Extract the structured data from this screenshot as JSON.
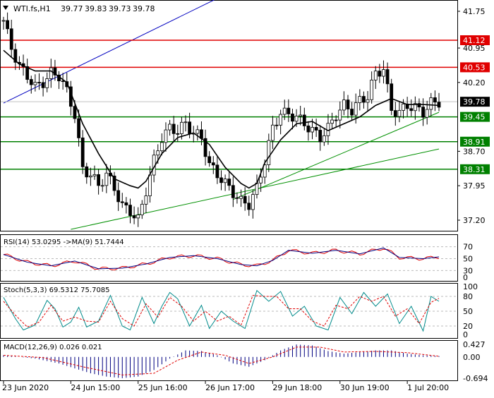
{
  "header": {
    "symbol": "WTI.fs,H1",
    "ohlc": [
      "39.77",
      "39.83",
      "39.73",
      "39.78"
    ]
  },
  "chart_data": [
    {
      "type": "candlestick",
      "title": "WTI.fs,H1",
      "ylim": [
        37.0,
        41.95
      ],
      "yticks": [
        "41.75",
        "40.95",
        "40.20",
        "38.70",
        "37.95",
        "37.20"
      ],
      "xticks": [
        "23 Jun 2020",
        "24 Jun 15:00",
        "25 Jun 16:00",
        "26 Jun 17:00",
        "29 Jun 18:00",
        "30 Jun 19:00",
        "1 Jul 20:00"
      ],
      "levels": [
        {
          "value": 41.12,
          "label": "41.12",
          "color": "#e00000"
        },
        {
          "value": 40.53,
          "label": "40.53",
          "color": "#e00000"
        },
        {
          "value": 39.45,
          "label": "39.45",
          "color": "#008000"
        },
        {
          "value": 38.91,
          "label": "38.91",
          "color": "#008000"
        },
        {
          "value": 38.31,
          "label": "38.31",
          "color": "#008000"
        }
      ],
      "last_price": {
        "value": 39.78,
        "label": "39.78"
      },
      "close_path": [
        [
          0,
          41.55
        ],
        [
          2,
          40.95
        ],
        [
          4,
          40.55
        ],
        [
          6,
          40.35
        ],
        [
          8,
          40.1
        ],
        [
          10,
          40.2
        ],
        [
          12,
          40.4
        ],
        [
          14,
          40.35
        ],
        [
          16,
          40.0
        ],
        [
          18,
          39.5
        ],
        [
          20,
          38.3
        ],
        [
          22,
          38.2
        ],
        [
          24,
          37.95
        ],
        [
          26,
          38.2
        ],
        [
          28,
          37.9
        ],
        [
          30,
          37.5
        ],
        [
          32,
          37.4
        ],
        [
          34,
          37.2
        ],
        [
          36,
          37.85
        ],
        [
          38,
          38.5
        ],
        [
          40,
          39.0
        ],
        [
          42,
          39.2
        ],
        [
          44,
          39.15
        ],
        [
          46,
          39.3
        ],
        [
          48,
          39.1
        ],
        [
          50,
          39.0
        ],
        [
          52,
          38.4
        ],
        [
          54,
          38.2
        ],
        [
          56,
          38.0
        ],
        [
          58,
          37.8
        ],
        [
          60,
          37.6
        ],
        [
          62,
          37.55
        ],
        [
          64,
          37.9
        ],
        [
          66,
          38.5
        ],
        [
          68,
          39.2
        ],
        [
          70,
          39.55
        ],
        [
          72,
          39.5
        ],
        [
          74,
          39.45
        ],
        [
          76,
          39.3
        ],
        [
          78,
          39.15
        ],
        [
          80,
          39.0
        ],
        [
          82,
          39.2
        ],
        [
          84,
          39.5
        ],
        [
          86,
          39.7
        ],
        [
          88,
          39.6
        ],
        [
          90,
          39.8
        ],
        [
          92,
          39.9
        ],
        [
          94,
          40.4
        ],
        [
          96,
          40.5
        ],
        [
          98,
          39.6
        ],
        [
          100,
          39.55
        ],
        [
          102,
          39.7
        ],
        [
          104,
          39.65
        ],
        [
          106,
          39.55
        ],
        [
          108,
          39.75
        ],
        [
          110,
          39.78
        ]
      ],
      "ma_path": [
        [
          0,
          40.9
        ],
        [
          4,
          40.6
        ],
        [
          8,
          40.45
        ],
        [
          12,
          40.45
        ],
        [
          16,
          40.2
        ],
        [
          20,
          39.3
        ],
        [
          24,
          38.65
        ],
        [
          28,
          38.1
        ],
        [
          32,
          37.95
        ],
        [
          34,
          37.9
        ],
        [
          36,
          38.05
        ],
        [
          40,
          38.65
        ],
        [
          44,
          39.0
        ],
        [
          48,
          39.1
        ],
        [
          52,
          38.85
        ],
        [
          56,
          38.35
        ],
        [
          60,
          38.0
        ],
        [
          62,
          37.9
        ],
        [
          64,
          38.0
        ],
        [
          66,
          38.45
        ],
        [
          70,
          38.95
        ],
        [
          74,
          39.3
        ],
        [
          78,
          39.35
        ],
        [
          82,
          39.15
        ],
        [
          86,
          39.3
        ],
        [
          90,
          39.45
        ],
        [
          94,
          39.7
        ],
        [
          98,
          39.85
        ],
        [
          102,
          39.72
        ],
        [
          106,
          39.72
        ],
        [
          110,
          39.7
        ]
      ]
    },
    {
      "type": "line",
      "title": "RSI(14) 53.0295 ->MA(9) 51.7444",
      "ylim": [
        15,
        85
      ],
      "yticks": [
        "70",
        "50",
        "30",
        "0"
      ],
      "rsi": [
        [
          0,
          57
        ],
        [
          6,
          44
        ],
        [
          12,
          38
        ],
        [
          18,
          46
        ],
        [
          24,
          33
        ],
        [
          30,
          34
        ],
        [
          36,
          41
        ],
        [
          42,
          52
        ],
        [
          48,
          55
        ],
        [
          54,
          50
        ],
        [
          60,
          40
        ],
        [
          64,
          38
        ],
        [
          68,
          47
        ],
        [
          72,
          64
        ],
        [
          78,
          59
        ],
        [
          84,
          64
        ],
        [
          90,
          58
        ],
        [
          96,
          68
        ],
        [
          100,
          52
        ],
        [
          106,
          50
        ],
        [
          110,
          53
        ]
      ]
    },
    {
      "type": "line",
      "title": "Stoch(5,3,3) 69.5312 75.7085",
      "ylim": [
        0,
        100
      ],
      "yticks": [
        "100",
        "80",
        "50",
        "20",
        "0"
      ],
      "k": [
        [
          0,
          78
        ],
        [
          3,
          35
        ],
        [
          5,
          12
        ],
        [
          8,
          22
        ],
        [
          11,
          72
        ],
        [
          13,
          55
        ],
        [
          15,
          18
        ],
        [
          17,
          28
        ],
        [
          19,
          58
        ],
        [
          21,
          18
        ],
        [
          24,
          30
        ],
        [
          27,
          82
        ],
        [
          30,
          20
        ],
        [
          32,
          12
        ],
        [
          35,
          78
        ],
        [
          38,
          25
        ],
        [
          40,
          60
        ],
        [
          42,
          88
        ],
        [
          44,
          75
        ],
        [
          47,
          20
        ],
        [
          50,
          62
        ],
        [
          52,
          15
        ],
        [
          55,
          50
        ],
        [
          58,
          30
        ],
        [
          61,
          15
        ],
        [
          64,
          92
        ],
        [
          67,
          70
        ],
        [
          70,
          90
        ],
        [
          73,
          40
        ],
        [
          76,
          60
        ],
        [
          79,
          20
        ],
        [
          82,
          12
        ],
        [
          85,
          78
        ],
        [
          88,
          45
        ],
        [
          91,
          88
        ],
        [
          94,
          60
        ],
        [
          97,
          85
        ],
        [
          100,
          25
        ],
        [
          103,
          60
        ],
        [
          106,
          10
        ],
        [
          108,
          80
        ],
        [
          110,
          70
        ]
      ],
      "d": [
        [
          0,
          70
        ],
        [
          3,
          42
        ],
        [
          6,
          18
        ],
        [
          9,
          28
        ],
        [
          12,
          62
        ],
        [
          15,
          30
        ],
        [
          18,
          38
        ],
        [
          21,
          30
        ],
        [
          24,
          28
        ],
        [
          27,
          70
        ],
        [
          30,
          35
        ],
        [
          33,
          20
        ],
        [
          36,
          65
        ],
        [
          39,
          38
        ],
        [
          42,
          78
        ],
        [
          45,
          60
        ],
        [
          48,
          30
        ],
        [
          51,
          50
        ],
        [
          54,
          30
        ],
        [
          57,
          40
        ],
        [
          60,
          22
        ],
        [
          63,
          82
        ],
        [
          66,
          80
        ],
        [
          69,
          80
        ],
        [
          72,
          55
        ],
        [
          75,
          55
        ],
        [
          78,
          30
        ],
        [
          81,
          20
        ],
        [
          84,
          62
        ],
        [
          87,
          55
        ],
        [
          90,
          80
        ],
        [
          93,
          70
        ],
        [
          96,
          80
        ],
        [
          99,
          40
        ],
        [
          102,
          55
        ],
        [
          105,
          25
        ],
        [
          108,
          68
        ],
        [
          110,
          76
        ]
      ]
    },
    {
      "type": "histogram",
      "title": "MACD(12,26,9) 0.026 0.021",
      "ylim": [
        -0.694,
        0.427
      ],
      "yticks": [
        "0.427",
        "0.00",
        "-0.694"
      ],
      "macd": [
        [
          0,
          0.05
        ],
        [
          8,
          -0.05
        ],
        [
          14,
          -0.2
        ],
        [
          18,
          -0.35
        ],
        [
          22,
          -0.5
        ],
        [
          26,
          -0.6
        ],
        [
          30,
          -0.65
        ],
        [
          34,
          -0.6
        ],
        [
          38,
          -0.4
        ],
        [
          42,
          -0.05
        ],
        [
          46,
          0.2
        ],
        [
          50,
          0.18
        ],
        [
          54,
          0.05
        ],
        [
          58,
          -0.2
        ],
        [
          62,
          -0.3
        ],
        [
          66,
          -0.1
        ],
        [
          70,
          0.2
        ],
        [
          74,
          0.38
        ],
        [
          78,
          0.35
        ],
        [
          82,
          0.18
        ],
        [
          86,
          0.1
        ],
        [
          90,
          0.15
        ],
        [
          94,
          0.2
        ],
        [
          98,
          0.2
        ],
        [
          102,
          0.1
        ],
        [
          106,
          0.05
        ],
        [
          110,
          0.026
        ]
      ],
      "signal": [
        [
          0,
          0.05
        ],
        [
          10,
          -0.02
        ],
        [
          20,
          -0.3
        ],
        [
          30,
          -0.55
        ],
        [
          38,
          -0.5
        ],
        [
          44,
          -0.1
        ],
        [
          50,
          0.15
        ],
        [
          56,
          0.05
        ],
        [
          62,
          -0.2
        ],
        [
          68,
          0.0
        ],
        [
          74,
          0.3
        ],
        [
          80,
          0.3
        ],
        [
          86,
          0.15
        ],
        [
          94,
          0.17
        ],
        [
          102,
          0.13
        ],
        [
          110,
          0.021
        ]
      ]
    }
  ]
}
